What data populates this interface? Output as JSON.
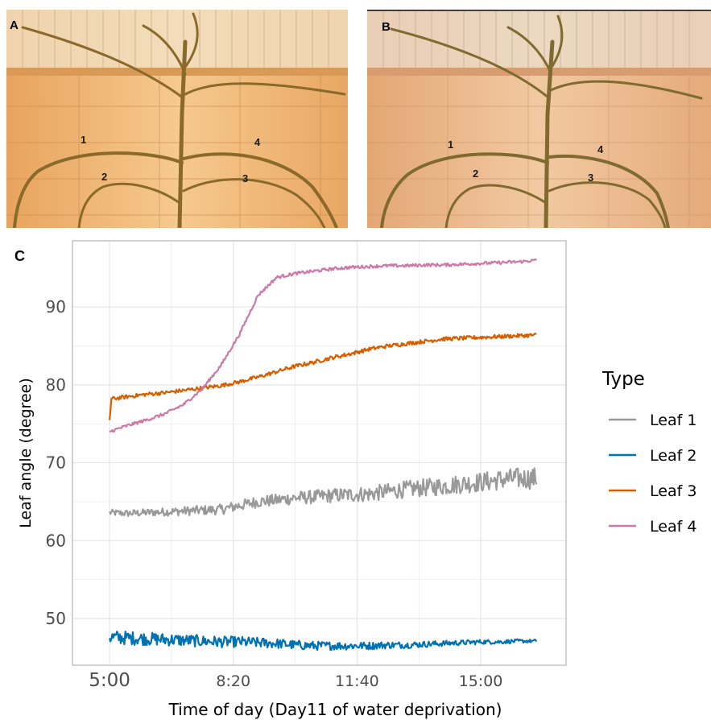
{
  "figure": {
    "panel_a": "A",
    "panel_b": "B",
    "panel_c": "C",
    "leaf_markers_a": [
      "1",
      "2",
      "3",
      "4"
    ],
    "leaf_markers_b": [
      "1",
      "2",
      "3",
      "4"
    ]
  },
  "colors": {
    "leaf1": "#999999",
    "leaf2": "#0072B2",
    "leaf3": "#D55E00",
    "leaf4": "#CC79A7",
    "grid": "#e6e6e6",
    "panel_border": "#b3b3b3"
  },
  "chart_data": {
    "type": "line",
    "title": "",
    "xlabel": "Time of day (Day11 of water deprivation)",
    "ylabel": "Leaf angle (degree)",
    "x_unit": "hours",
    "x_ticks": [
      {
        "value": 5.0,
        "label": "5:00"
      },
      {
        "value": 8.333,
        "label": "8:20"
      },
      {
        "value": 11.667,
        "label": "11:40"
      },
      {
        "value": 15.0,
        "label": "15:00"
      }
    ],
    "y_ticks": [
      50,
      60,
      70,
      80,
      90
    ],
    "xlim": [
      4.0,
      17.3
    ],
    "ylim": [
      44,
      98.5
    ],
    "grid": true,
    "legend_title": "Type",
    "legend_position": "right",
    "series": [
      {
        "name": "Leaf 1",
        "color_key": "leaf1",
        "noise": 1.0,
        "x": [
          5.0,
          5.5,
          6.0,
          6.5,
          7.0,
          7.5,
          8.0,
          8.5,
          9.0,
          9.5,
          10.0,
          10.5,
          11.0,
          11.5,
          12.0,
          12.5,
          13.0,
          13.5,
          14.0,
          14.5,
          15.0,
          15.5,
          16.0,
          16.5
        ],
        "y": [
          63.6,
          63.5,
          63.6,
          63.7,
          63.8,
          63.9,
          64.0,
          64.5,
          65.0,
          65.2,
          65.5,
          65.6,
          65.8,
          65.9,
          66.0,
          66.3,
          66.6,
          66.8,
          67.0,
          67.3,
          67.5,
          67.8,
          68.0,
          68.0
        ]
      },
      {
        "name": "Leaf 2",
        "color_key": "leaf2",
        "noise": 0.7,
        "x": [
          5.0,
          5.5,
          6.0,
          6.5,
          7.0,
          7.5,
          8.0,
          8.5,
          9.0,
          9.5,
          10.0,
          10.5,
          11.0,
          11.5,
          12.0,
          12.5,
          13.0,
          13.5,
          14.0,
          14.5,
          15.0,
          15.5,
          16.0,
          16.5
        ],
        "y": [
          47.6,
          47.5,
          47.4,
          47.3,
          47.2,
          47.1,
          47.0,
          47.0,
          46.9,
          46.8,
          46.6,
          46.5,
          46.5,
          46.5,
          46.5,
          46.6,
          46.6,
          46.7,
          46.8,
          46.9,
          47.0,
          47.0,
          47.1,
          47.1
        ]
      },
      {
        "name": "Leaf 3",
        "color_key": "leaf3",
        "noise": 0.25,
        "x": [
          5.0,
          5.05,
          5.5,
          6.0,
          6.5,
          7.0,
          7.5,
          8.0,
          8.5,
          9.0,
          9.5,
          10.0,
          10.5,
          11.0,
          11.5,
          12.0,
          12.5,
          13.0,
          13.5,
          14.0,
          14.5,
          15.0,
          15.5,
          16.0,
          16.5
        ],
        "y": [
          75.5,
          78.2,
          78.5,
          78.8,
          79.0,
          79.3,
          79.6,
          79.9,
          80.4,
          81.0,
          81.7,
          82.4,
          82.9,
          83.5,
          84.0,
          84.6,
          85.0,
          85.3,
          85.6,
          85.9,
          86.0,
          86.1,
          86.2,
          86.3,
          86.4
        ]
      },
      {
        "name": "Leaf 4",
        "color_key": "leaf4",
        "noise": 0.2,
        "x": [
          5.0,
          5.5,
          6.0,
          6.5,
          7.0,
          7.5,
          8.0,
          8.5,
          9.0,
          9.5,
          10.0,
          10.5,
          11.0,
          11.5,
          12.0,
          12.5,
          13.0,
          13.5,
          14.0,
          14.5,
          15.0,
          15.5,
          16.0,
          16.5
        ],
        "y": [
          74.0,
          74.8,
          75.5,
          76.3,
          77.5,
          79.5,
          82.5,
          86.5,
          91.5,
          93.8,
          94.3,
          94.6,
          94.9,
          95.1,
          95.2,
          95.3,
          95.3,
          95.4,
          95.4,
          95.5,
          95.6,
          95.7,
          95.8,
          96.0
        ]
      }
    ]
  }
}
